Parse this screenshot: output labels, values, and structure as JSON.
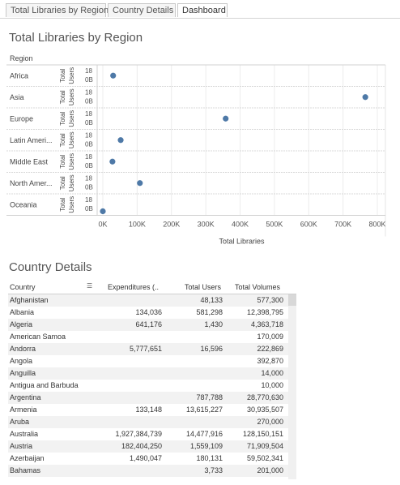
{
  "tabs": [
    {
      "label": "Total Libraries by Region"
    },
    {
      "label": "Country Details"
    },
    {
      "label": "Dashboard"
    }
  ],
  "chart_section": {
    "title": "Total Libraries by Region",
    "region_header": "Region"
  },
  "chart_data": {
    "type": "scatter",
    "title": "Total Libraries by Region",
    "xlabel": "Total Libraries",
    "ylabel": "Total Users",
    "xlim": [
      0,
      800000
    ],
    "x_ticks": [
      "0K",
      "100K",
      "200K",
      "300K",
      "400K",
      "500K",
      "600K",
      "700K",
      "800K"
    ],
    "y_tick_labels": [
      "18",
      "0B"
    ],
    "grid": true,
    "rows": [
      {
        "region": "Africa",
        "x": 30000
      },
      {
        "region": "Asia",
        "x": 765000
      },
      {
        "region": "Europe",
        "x": 358000
      },
      {
        "region": "Latin Ameri...",
        "x": 52000
      },
      {
        "region": "Middle East",
        "x": 28000
      },
      {
        "region": "North Amer...",
        "x": 108000
      },
      {
        "region": "Oceania",
        "x": 0
      }
    ],
    "point_color": "#4e79a7"
  },
  "table_section": {
    "title": "Country Details",
    "columns": [
      "Country",
      "Expenditures (..",
      "Total Users",
      "Total Volumes"
    ],
    "rows": [
      [
        "Afghanistan",
        "",
        "48,133",
        "577,300"
      ],
      [
        "Albania",
        "134,036",
        "581,298",
        "12,398,795"
      ],
      [
        "Algeria",
        "641,176",
        "1,430",
        "4,363,718"
      ],
      [
        "American Samoa",
        "",
        "",
        "170,009"
      ],
      [
        "Andorra",
        "5,777,651",
        "16,596",
        "222,869"
      ],
      [
        "Angola",
        "",
        "",
        "392,870"
      ],
      [
        "Anguilla",
        "",
        "",
        "14,000"
      ],
      [
        "Antigua and Barbuda",
        "",
        "",
        "10,000"
      ],
      [
        "Argentina",
        "",
        "787,788",
        "28,770,630"
      ],
      [
        "Armenia",
        "133,148",
        "13,615,227",
        "30,935,507"
      ],
      [
        "Aruba",
        "",
        "",
        "270,000"
      ],
      [
        "Australia",
        "1,927,384,739",
        "14,477,916",
        "128,150,151"
      ],
      [
        "Austria",
        "182,404,250",
        "1,559,109",
        "71,909,504"
      ],
      [
        "Azerbaijan",
        "1,490,047",
        "180,131",
        "59,502,341"
      ],
      [
        "Bahamas",
        "",
        "3,733",
        "201,000"
      ]
    ]
  }
}
